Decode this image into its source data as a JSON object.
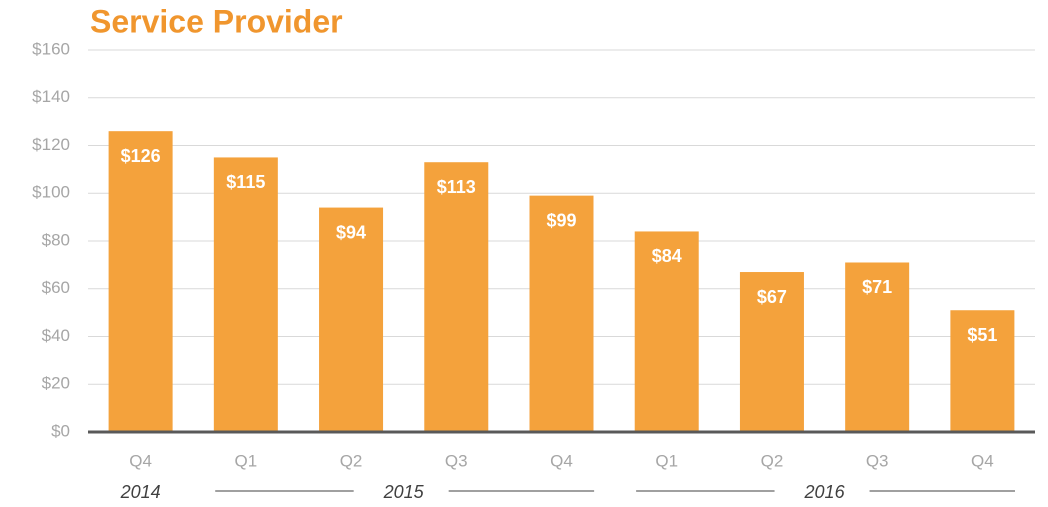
{
  "chart_data": {
    "type": "bar",
    "title": "Service Provider",
    "categories": [
      "Q4",
      "Q1",
      "Q2",
      "Q3",
      "Q4",
      "Q1",
      "Q2",
      "Q3",
      "Q4"
    ],
    "groups": [
      {
        "label": "2014",
        "span": 1
      },
      {
        "label": "2015",
        "span": 4
      },
      {
        "label": "2016",
        "span": 4
      }
    ],
    "values": [
      126,
      115,
      94,
      113,
      99,
      84,
      67,
      71,
      51
    ],
    "value_labels": [
      "$126",
      "$115",
      "$94",
      "$113",
      "$99",
      "$84",
      "$67",
      "$71",
      "$51"
    ],
    "color": "#f4a23c",
    "ylim": [
      0,
      160
    ],
    "yticks": [
      {
        "value": 0,
        "label": "$0"
      },
      {
        "value": 20,
        "label": "$20"
      },
      {
        "value": 40,
        "label": "$40"
      },
      {
        "value": 60,
        "label": "$60"
      },
      {
        "value": 80,
        "label": "$80"
      },
      {
        "value": 100,
        "label": "$100"
      },
      {
        "value": 120,
        "label": "$120"
      },
      {
        "value": 140,
        "label": "$140"
      },
      {
        "value": 160,
        "label": "$160"
      }
    ],
    "grid": true
  }
}
